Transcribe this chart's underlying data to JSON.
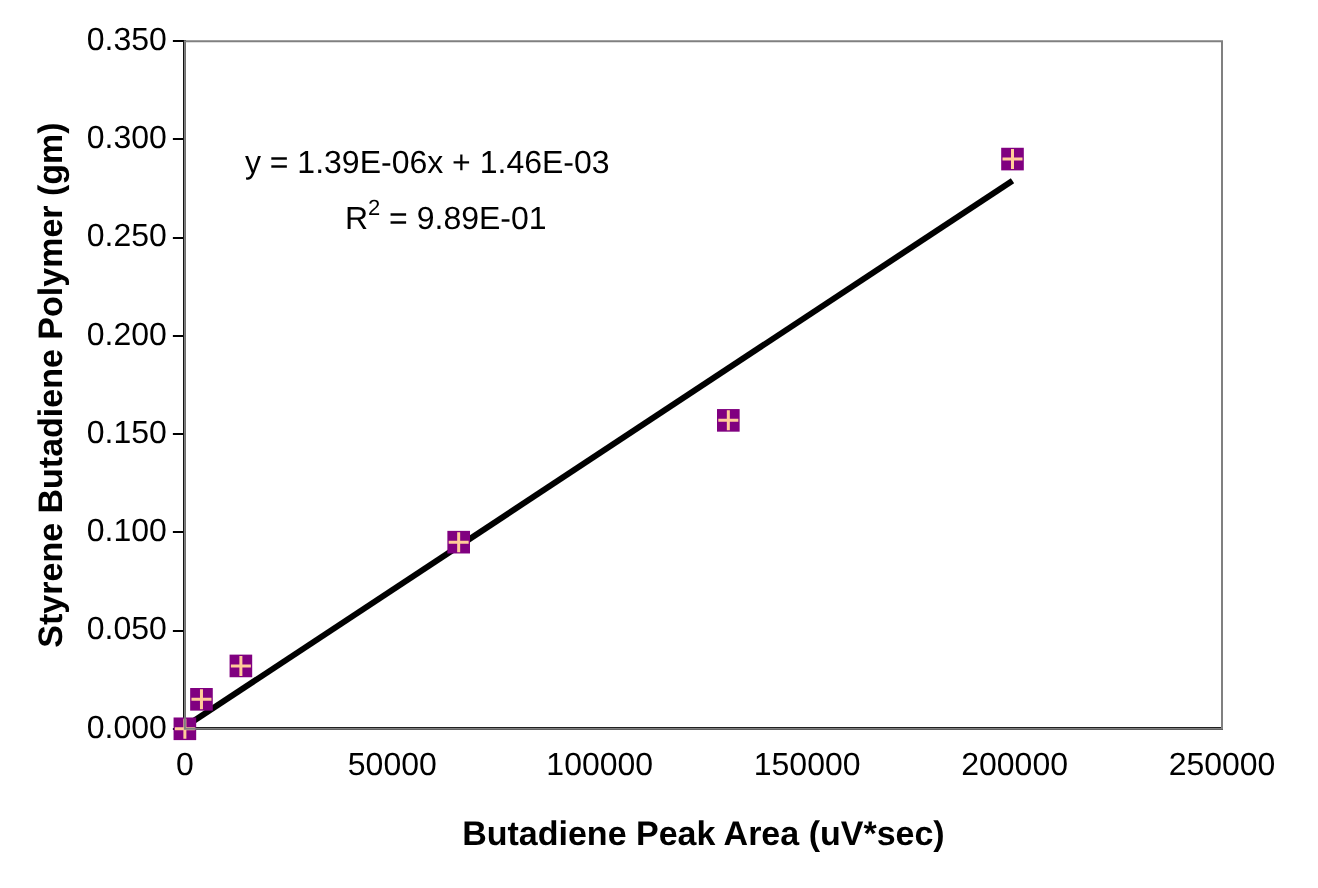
{
  "chart_data": {
    "type": "scatter",
    "xlabel": "Butadiene Peak Area (uV*sec)",
    "ylabel": "Styrene Butadiene Polymer (gm)",
    "series": [
      {
        "type": "scatter",
        "color": "#800080",
        "x": [
          0,
          4000,
          13500,
          66000,
          131000,
          199500
        ],
        "values": [
          0,
          0.015,
          0.032,
          0.095,
          0.157,
          0.29
        ],
        "marker": "square"
      },
      {
        "type": "line",
        "color": "#000000",
        "x": [
          0,
          199500
        ],
        "values": [
          0.001,
          0.279
        ],
        "marker": "none"
      }
    ],
    "xlim": [
      0,
      250000
    ],
    "xticks": [
      0,
      50000,
      100000,
      150000,
      200000,
      250000
    ],
    "ylim": [
      0,
      0.35
    ],
    "yticks": [
      {
        "value": 0,
        "label": "0.000"
      },
      {
        "value": 0.05,
        "label": "0.050"
      },
      {
        "value": 0.1,
        "label": "0.100"
      },
      {
        "value": 0.15,
        "label": "0.150"
      },
      {
        "value": 0.2,
        "label": "0.200"
      },
      {
        "value": 0.25,
        "label": "0.250"
      },
      {
        "value": 0.3,
        "label": "0.300"
      },
      {
        "value": 0.35,
        "label": "0.350"
      }
    ],
    "annotations": [
      "y = 1.39E-06x + 1.46E-03",
      "R$^{2}$ = 9.89E-01"
    ],
    "grid": false,
    "legend": false
  }
}
